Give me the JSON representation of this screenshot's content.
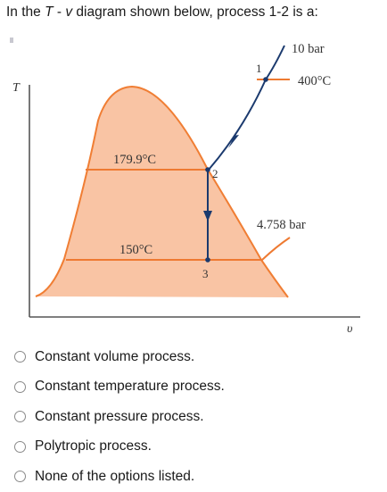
{
  "question": {
    "prefix": "In the ",
    "var_t": "T",
    "middle": " - ",
    "var_v": "v",
    "suffix": " diagram shown below, process 1-2 is a:"
  },
  "diagram": {
    "axis_t": "T",
    "axis_v": "υ",
    "label_10bar": "10 bar",
    "label_400c": "400°C",
    "label_state1": "1",
    "label_state2": "2",
    "label_state3": "3",
    "label_179c": "179.9°C",
    "label_150c": "150°C",
    "label_4758bar": "4.758 bar",
    "colors": {
      "dome_fill": "#f9c4a4",
      "dome_line": "#f07e34",
      "process_line": "#1b3a6e"
    }
  },
  "options": [
    {
      "label": "Constant volume process."
    },
    {
      "label": "Constant temperature process."
    },
    {
      "label": "Constant pressure process."
    },
    {
      "label": "Polytropic process."
    },
    {
      "label": "None of the options listed."
    }
  ]
}
